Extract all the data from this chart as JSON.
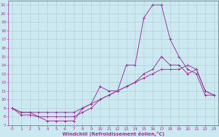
{
  "xlabel": "Windchill (Refroidissement éolien,°C)",
  "background_color": "#cce8f0",
  "grid_color": "#aacccc",
  "line_color": "#993399",
  "xlim": [
    -0.5,
    23.5
  ],
  "ylim": [
    7,
    21.5
  ],
  "xticks": [
    0,
    1,
    2,
    3,
    4,
    5,
    6,
    7,
    8,
    9,
    10,
    11,
    12,
    13,
    14,
    15,
    16,
    17,
    18,
    19,
    20,
    21,
    22,
    23
  ],
  "yticks": [
    7,
    8,
    9,
    10,
    11,
    12,
    13,
    14,
    15,
    16,
    17,
    18,
    19,
    20,
    21
  ],
  "series": [
    [
      9,
      8.2,
      8.2,
      8,
      7.5,
      7.5,
      7.5,
      7.5,
      9,
      9.5,
      11.5,
      11,
      11,
      14,
      14,
      19.5,
      21,
      21,
      17,
      15,
      13.5,
      13,
      10.5,
      10.5
    ],
    [
      9,
      8.5,
      8.5,
      8,
      8,
      8,
      8,
      8,
      8.5,
      9,
      10,
      10.5,
      11,
      11.5,
      12,
      13,
      13.5,
      15,
      14,
      14,
      13,
      13.5,
      11,
      10.5
    ],
    [
      9,
      8.5,
      8.5,
      8.5,
      8.5,
      8.5,
      8.5,
      8.5,
      9,
      9.5,
      10,
      10.5,
      11,
      11.5,
      12,
      12.5,
      13,
      13.5,
      13.5,
      13.5,
      14,
      13.5,
      11,
      10.5
    ]
  ]
}
